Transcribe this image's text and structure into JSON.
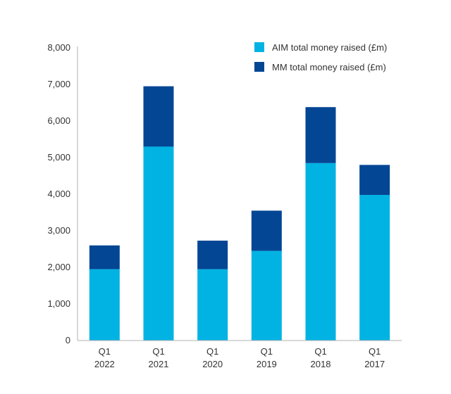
{
  "chart_data": {
    "type": "bar",
    "stacked": true,
    "categories": [
      {
        "line1": "Q1",
        "line2": "2022"
      },
      {
        "line1": "Q1",
        "line2": "2021"
      },
      {
        "line1": "Q1",
        "line2": "2020"
      },
      {
        "line1": "Q1",
        "line2": "2019"
      },
      {
        "line1": "Q1",
        "line2": "2018"
      },
      {
        "line1": "Q1",
        "line2": "2017"
      }
    ],
    "series": [
      {
        "name": "AIM total money raised (£m)",
        "color": "#00B3E3",
        "values": [
          1950,
          5300,
          1950,
          2450,
          4850,
          3980
        ]
      },
      {
        "name": "MM total money raised (£m)",
        "color": "#034694",
        "values": [
          650,
          1650,
          780,
          1100,
          1530,
          820
        ]
      }
    ],
    "ylim": [
      0,
      8000
    ],
    "yticks": [
      "0",
      "1,000",
      "2,000",
      "3,000",
      "4,000",
      "5,000",
      "6,000",
      "7,000",
      "8,000"
    ],
    "grid": false,
    "legend_position": "top-right"
  }
}
